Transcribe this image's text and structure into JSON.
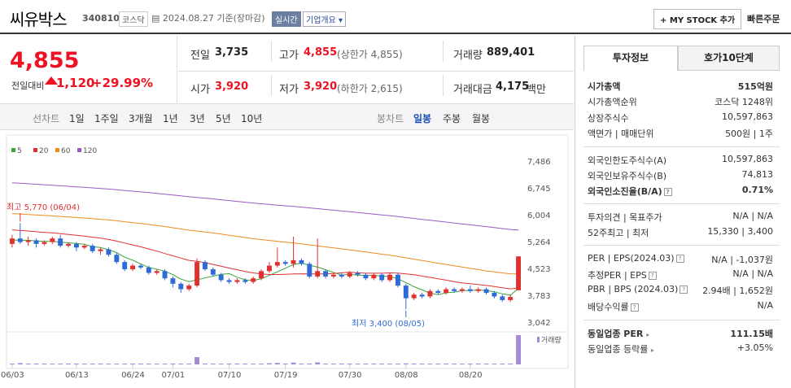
{
  "header": {
    "name": "씨유박스",
    "code": "340810",
    "market": "코스닥",
    "date": "2024.08.27 기준(장마감)",
    "realtime": "실시간",
    "company_info": "기업개요",
    "mystock": "MY STOCK 추가",
    "quick_order": "빠른주문"
  },
  "price": {
    "current": "4,855",
    "change_label": "전일대비",
    "change": "1,120",
    "change_pct": "+29.99%"
  },
  "stats": {
    "prev_label": "전일",
    "prev": "3,735",
    "high_label": "고가",
    "high": "4,855",
    "high_note": "(상한가 4,855)",
    "volume_label": "거래량",
    "volume": "889,401",
    "open_label": "시가",
    "open": "3,920",
    "low_label": "저가",
    "low": "3,920",
    "low_note": "(하한가 2,615)",
    "amount_label": "거래대금",
    "amount": "4,175",
    "amount_unit": "백만"
  },
  "periods": {
    "label": "선차트",
    "items": [
      "1일",
      "1주일",
      "3개월",
      "1년",
      "3년",
      "5년",
      "10년"
    ],
    "candle_label": "봉차트",
    "candles": [
      "일봉",
      "주봉",
      "월봉"
    ],
    "active_candle": "일봉"
  },
  "tabs": [
    "투자정보",
    "호가10단계"
  ],
  "invest": {
    "mcap_label": "시가총액",
    "mcap": "515억원",
    "rank_label": "시가총액순위",
    "rank": "코스닥 1248위",
    "shares_label": "상장주식수",
    "shares": "10,597,863",
    "par_label": "액면가 | 매매단위",
    "par": "500원 | 1주",
    "forlimit_label": "외국인한도주식수(A)",
    "forlimit": "10,597,863",
    "forhold_label": "외국인보유주식수(B)",
    "forhold": "74,813",
    "forratio_label": "외국인소진율(B/A)",
    "forratio": "0.71%",
    "opinion_label": "투자의견 | 목표주가",
    "opinion": "N/A | N/A",
    "wk52_label": "52주최고 | 최저",
    "wk52": "15,330 | 3,400",
    "per_label": "PER | EPS(2024.03)",
    "per": "N/A | -1,037원",
    "eper_label": "추정PER | EPS",
    "eper": "N/A | N/A",
    "pbr_label": "PBR | BPS (2024.03)",
    "pbr": "2.94배 | 1,652원",
    "div_label": "배당수익률",
    "div": "N/A",
    "ind_per_label": "동일업종 PER",
    "ind_per": "111.15배",
    "ind_chg_label": "동일업종 등락률",
    "ind_chg": "+3.05%"
  },
  "chart_data": {
    "type": "candlestick",
    "legend": [
      "5",
      "20",
      "60",
      "120"
    ],
    "legend_colors": [
      "#3aa53a",
      "#e03030",
      "#f08a1e",
      "#9b59c6"
    ],
    "y_ticks": [
      "7,486",
      "6,745",
      "6,004",
      "5,264",
      "4,523",
      "3,783",
      "3,042"
    ],
    "x_ticks": [
      "06/03",
      "06/13",
      "06/24",
      "07/01",
      "07/10",
      "07/19",
      "07/30",
      "08/08",
      "08/20"
    ],
    "high_note": "최고 5,770 (06/04)",
    "low_note": "최저 3,400 (08/05)",
    "volume_label": "거래량",
    "ylim": [
      3042,
      7486
    ],
    "candles": [
      [
        5200,
        5350,
        5450,
        5100
      ],
      [
        5350,
        5250,
        5770,
        5200
      ],
      [
        5250,
        5300,
        5400,
        5150
      ],
      [
        5300,
        5200,
        5350,
        5100
      ],
      [
        5200,
        5250,
        5300,
        5150
      ],
      [
        5250,
        5350,
        5400,
        5200
      ],
      [
        5350,
        5150,
        5450,
        5100
      ],
      [
        5150,
        5200,
        5250,
        5100
      ],
      [
        5200,
        5100,
        5250,
        5000
      ],
      [
        5100,
        5150,
        5200,
        5050
      ],
      [
        5150,
        5000,
        5200,
        4950
      ],
      [
        5000,
        5050,
        5100,
        4900
      ],
      [
        5050,
        4900,
        5100,
        4850
      ],
      [
        4900,
        4700,
        4950,
        4650
      ],
      [
        4700,
        4500,
        4750,
        4450
      ],
      [
        4500,
        4600,
        4650,
        4450
      ],
      [
        4600,
        4550,
        4650,
        4500
      ],
      [
        4550,
        4400,
        4600,
        4350
      ],
      [
        4400,
        4450,
        4500,
        4350
      ],
      [
        4450,
        4250,
        4500,
        4200
      ],
      [
        4250,
        4100,
        4300,
        4000
      ],
      [
        4100,
        3950,
        4150,
        3850
      ],
      [
        3950,
        4050,
        4100,
        3900
      ],
      [
        4050,
        4700,
        4800,
        4000
      ],
      [
        4700,
        4500,
        4750,
        4450
      ],
      [
        4500,
        4350,
        4550,
        4300
      ],
      [
        4350,
        4200,
        4400,
        4150
      ],
      [
        4200,
        4150,
        4250,
        4100
      ],
      [
        4150,
        4200,
        4250,
        4100
      ],
      [
        4200,
        4150,
        4250,
        4100
      ],
      [
        4150,
        4250,
        4300,
        4100
      ],
      [
        4250,
        4450,
        4500,
        4200
      ],
      [
        4450,
        4600,
        4700,
        4400
      ],
      [
        4600,
        4700,
        5100,
        4550
      ],
      [
        4700,
        4650,
        4750,
        4600
      ],
      [
        4650,
        4750,
        5400,
        4550
      ],
      [
        4750,
        4650,
        4800,
        4600
      ],
      [
        4650,
        4300,
        4700,
        4250
      ],
      [
        4300,
        4450,
        5350,
        4250
      ],
      [
        4450,
        4300,
        4500,
        4250
      ],
      [
        4300,
        4350,
        4400,
        4250
      ],
      [
        4350,
        4300,
        4400,
        4250
      ],
      [
        4300,
        4400,
        4450,
        4250
      ],
      [
        4400,
        4350,
        4450,
        4300
      ],
      [
        4350,
        4250,
        4400,
        4200
      ],
      [
        4250,
        4350,
        4400,
        4200
      ],
      [
        4350,
        4200,
        4400,
        4150
      ],
      [
        4200,
        4350,
        4400,
        4150
      ],
      [
        4350,
        4050,
        4400,
        4000
      ],
      [
        4050,
        3700,
        4100,
        3400
      ],
      [
        3700,
        3800,
        3850,
        3650
      ],
      [
        3800,
        3750,
        3850,
        3700
      ],
      [
        3750,
        3900,
        3950,
        3700
      ],
      [
        3900,
        3850,
        3950,
        3800
      ],
      [
        3850,
        3950,
        4000,
        3800
      ],
      [
        3950,
        3900,
        4000,
        3850
      ],
      [
        3900,
        3950,
        4000,
        3850
      ],
      [
        3950,
        3900,
        4050,
        3850
      ],
      [
        3900,
        3950,
        4000,
        3850
      ],
      [
        3950,
        3850,
        4000,
        3800
      ],
      [
        3850,
        3750,
        3900,
        3700
      ],
      [
        3750,
        3650,
        3800,
        3600
      ],
      [
        3650,
        3735,
        3800,
        3600
      ],
      [
        3920,
        4855,
        4855,
        3920
      ]
    ],
    "volume": [
      8,
      40,
      6,
      5,
      4,
      7,
      6,
      5,
      4,
      4,
      5,
      4,
      6,
      8,
      7,
      4,
      4,
      5,
      4,
      5,
      6,
      7,
      5,
      220,
      25,
      10,
      6,
      5,
      4,
      5,
      6,
      15,
      35,
      45,
      12,
      55,
      10,
      18,
      60,
      8,
      6,
      5,
      4,
      5,
      6,
      4,
      5,
      6,
      12,
      30,
      8,
      5,
      6,
      5,
      4,
      5,
      4,
      5,
      4,
      5,
      6,
      8,
      10,
      889
    ]
  }
}
